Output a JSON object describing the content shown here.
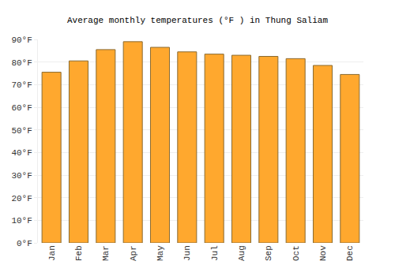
{
  "chart_data": {
    "type": "bar",
    "title": "Average monthly temperatures (°F ) in Thung Saliam",
    "categories": [
      "Jan",
      "Feb",
      "Mar",
      "Apr",
      "May",
      "Jun",
      "Jul",
      "Aug",
      "Sep",
      "Oct",
      "Nov",
      "Dec"
    ],
    "values": [
      75.5,
      80.5,
      85.5,
      89,
      86.5,
      84.5,
      83.5,
      83,
      82.5,
      81.5,
      78.5,
      74.5
    ],
    "color": "#ffa82e",
    "ylim": [
      0,
      90
    ],
    "yticks": [
      {
        "value": 0,
        "label": "0°F"
      },
      {
        "value": 10,
        "label": "10°F"
      },
      {
        "value": 20,
        "label": "20°F"
      },
      {
        "value": 30,
        "label": "30°F"
      },
      {
        "value": 40,
        "label": "40°F"
      },
      {
        "value": 50,
        "label": "50°F"
      },
      {
        "value": 60,
        "label": "60°F"
      },
      {
        "value": 70,
        "label": "70°F"
      },
      {
        "value": 80,
        "label": "80°F"
      },
      {
        "value": 90,
        "label": "90°F"
      }
    ],
    "grid": true
  }
}
